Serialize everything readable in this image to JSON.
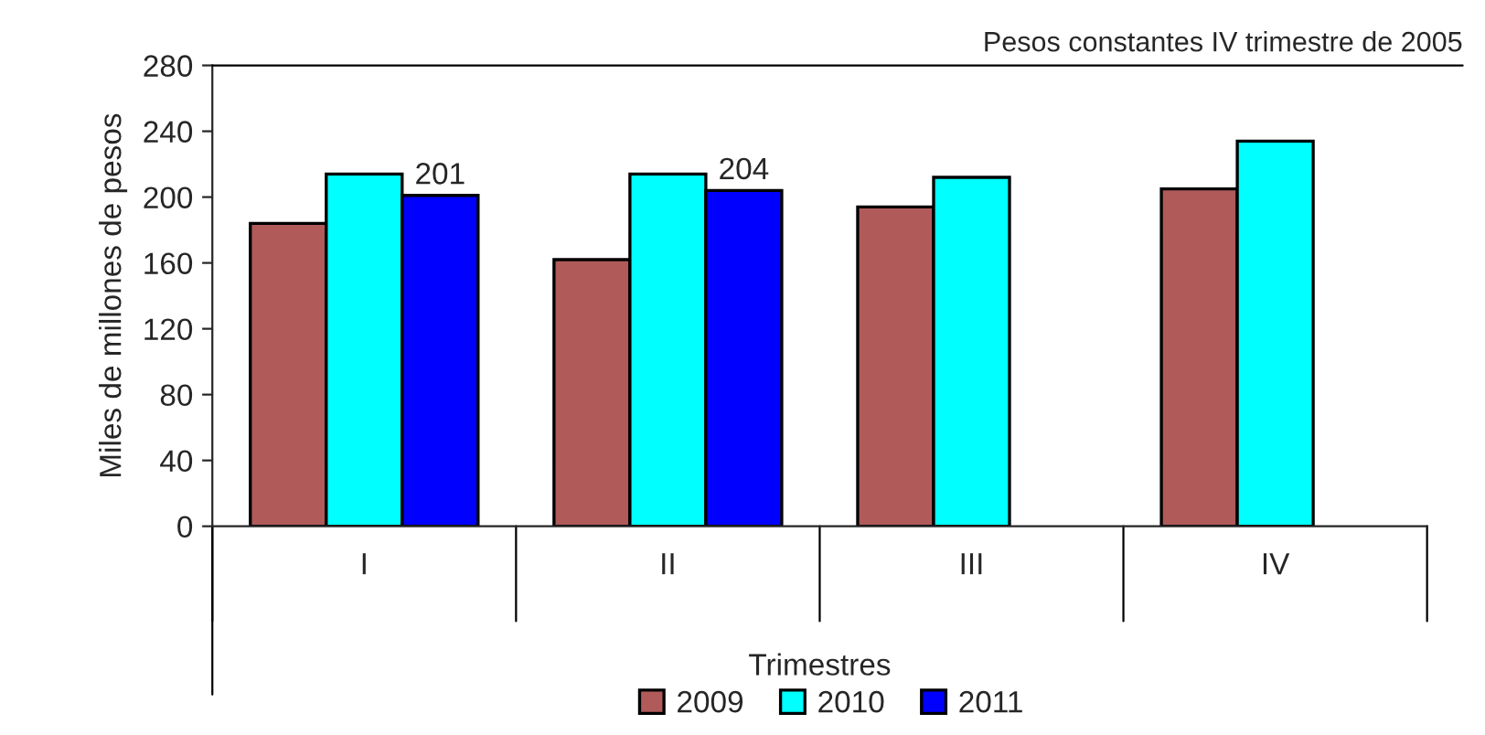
{
  "chart_data": {
    "type": "bar",
    "subtitle": "Pesos constantes IV trimestre de 2005",
    "xlabel": "Trimestres",
    "ylabel": "Miles de millones de pesos",
    "categories": [
      "I",
      "II",
      "III",
      "IV"
    ],
    "series": [
      {
        "name": "2009",
        "color": "#b05a5a",
        "values": [
          184,
          162,
          194,
          205
        ]
      },
      {
        "name": "2010",
        "color": "#00ffff",
        "values": [
          214,
          214,
          212,
          234
        ]
      },
      {
        "name": "2011",
        "color": "#0000ff",
        "values": [
          201,
          204,
          null,
          null
        ],
        "value_labels": [
          "201",
          "204",
          null,
          null
        ]
      }
    ],
    "ylim": [
      0,
      280
    ],
    "yticks": [
      0,
      40,
      80,
      120,
      160,
      200,
      240,
      280
    ],
    "grid": false,
    "legend": "bottom"
  }
}
